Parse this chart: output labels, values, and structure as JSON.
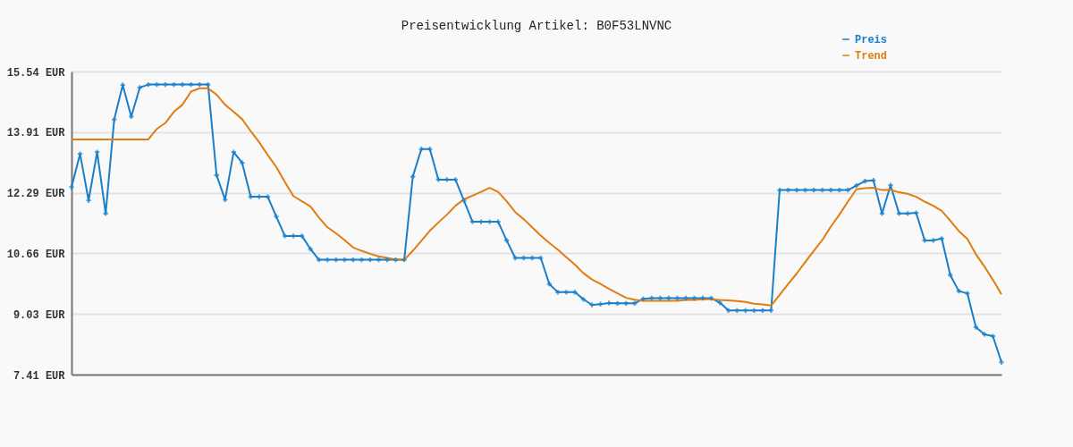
{
  "chart_data": {
    "type": "line",
    "title": "Preisentwicklung Artikel: B0F53LNVNC",
    "categories": [
      null,
      null,
      null,
      null,
      null,
      null,
      null,
      null,
      null,
      null,
      null,
      null,
      null,
      null,
      null,
      null,
      null,
      null,
      null,
      null,
      null,
      null,
      null,
      null,
      null,
      null,
      null,
      null,
      null,
      null,
      null,
      null,
      null,
      null,
      null,
      null,
      null,
      null,
      null,
      null,
      null,
      null,
      null,
      null,
      null,
      null,
      null,
      null,
      null,
      null,
      null,
      null,
      null,
      null,
      null,
      null,
      null,
      null,
      null,
      null,
      null,
      null,
      null,
      null,
      null,
      null,
      null,
      null,
      null,
      null,
      null,
      null,
      null,
      null,
      null,
      null,
      null,
      null,
      null,
      null,
      null,
      null,
      null,
      null,
      null,
      null,
      null,
      null,
      null,
      null,
      null,
      null,
      null,
      null,
      null,
      null,
      null,
      null,
      null,
      null,
      null,
      null,
      null,
      null,
      null,
      null,
      null,
      null,
      null,
      null
    ],
    "series": [
      {
        "name": "Preis",
        "color": "#1a7fc9",
        "marker": "cross",
        "values": [
          12.44,
          13.33,
          12.08,
          13.38,
          11.73,
          14.25,
          15.18,
          14.33,
          15.11,
          15.19,
          15.19,
          15.19,
          15.19,
          15.19,
          15.19,
          15.19,
          15.19,
          12.76,
          12.1,
          13.38,
          13.09,
          12.18,
          12.18,
          12.18,
          11.65,
          11.13,
          11.13,
          11.13,
          10.78,
          10.49,
          10.49,
          10.49,
          10.49,
          10.49,
          10.49,
          10.49,
          10.49,
          10.49,
          10.49,
          10.49,
          12.72,
          13.46,
          13.46,
          12.64,
          12.64,
          12.64,
          12.08,
          11.51,
          11.51,
          11.51,
          11.51,
          11.01,
          10.54,
          10.54,
          10.54,
          10.54,
          9.84,
          9.62,
          9.62,
          9.62,
          9.43,
          9.28,
          9.3,
          9.33,
          9.32,
          9.32,
          9.32,
          9.44,
          9.46,
          9.46,
          9.46,
          9.46,
          9.46,
          9.46,
          9.46,
          9.46,
          9.34,
          9.13,
          9.13,
          9.13,
          9.13,
          9.13,
          9.13,
          12.36,
          12.36,
          12.36,
          12.36,
          12.36,
          12.36,
          12.36,
          12.36,
          12.36,
          12.48,
          12.6,
          12.62,
          11.73,
          12.49,
          11.73,
          11.73,
          11.75,
          11.01,
          11.01,
          11.06,
          10.08,
          9.65,
          9.59,
          8.68,
          8.49,
          8.44,
          7.74
        ]
      },
      {
        "name": "Trend",
        "color": "#e07d10",
        "marker": "none",
        "values": [
          13.72,
          13.72,
          13.72,
          13.72,
          13.72,
          13.72,
          13.72,
          13.72,
          13.72,
          13.72,
          14.0,
          14.16,
          14.46,
          14.65,
          15.0,
          15.09,
          15.09,
          14.92,
          14.65,
          14.46,
          14.26,
          13.94,
          13.64,
          13.3,
          12.98,
          12.58,
          12.2,
          12.06,
          11.92,
          11.62,
          11.36,
          11.2,
          11.02,
          10.82,
          10.73,
          10.65,
          10.58,
          10.54,
          10.5,
          10.49,
          10.73,
          11.0,
          11.27,
          11.49,
          11.7,
          11.94,
          12.11,
          12.21,
          12.31,
          12.42,
          12.31,
          12.06,
          11.77,
          11.58,
          11.36,
          11.14,
          10.94,
          10.76,
          10.56,
          10.36,
          10.13,
          9.96,
          9.84,
          9.71,
          9.59,
          9.47,
          9.42,
          9.39,
          9.39,
          9.39,
          9.39,
          9.39,
          9.41,
          9.41,
          9.43,
          9.43,
          9.41,
          9.4,
          9.38,
          9.36,
          9.31,
          9.29,
          9.26,
          9.55,
          9.84,
          10.12,
          10.43,
          10.73,
          11.02,
          11.38,
          11.7,
          12.05,
          12.38,
          12.41,
          12.42,
          12.36,
          12.37,
          12.3,
          12.26,
          12.18,
          12.05,
          11.94,
          11.8,
          11.54,
          11.26,
          11.05,
          10.64,
          10.31,
          9.95,
          9.56
        ]
      }
    ],
    "ylim": [
      7.41,
      15.54
    ],
    "yticks": [
      {
        "value": 7.41,
        "label": "7.41 EUR"
      },
      {
        "value": 9.03,
        "label": "9.03 EUR"
      },
      {
        "value": 10.66,
        "label": "10.66 EUR"
      },
      {
        "value": 12.29,
        "label": "12.29 EUR"
      },
      {
        "value": 13.91,
        "label": "13.91 EUR"
      },
      {
        "value": 15.54,
        "label": "15.54 EUR"
      }
    ],
    "grid": "y",
    "legend": "top right",
    "tick_labels": "y",
    "line_style": "solid"
  }
}
